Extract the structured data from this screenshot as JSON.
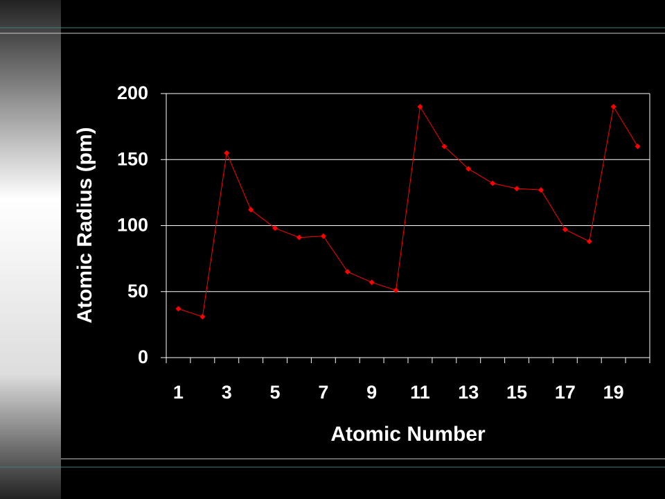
{
  "chart_data": {
    "type": "line",
    "categories": [
      "1",
      null,
      "3",
      null,
      "5",
      null,
      "7",
      null,
      "9",
      null,
      "11",
      null,
      "13",
      null,
      "15",
      null,
      "17",
      null,
      "19",
      null
    ],
    "values": [
      37,
      31,
      155,
      112,
      98,
      91,
      92,
      65,
      57,
      51,
      190,
      160,
      143,
      132,
      128,
      127,
      97,
      88,
      190,
      160
    ],
    "color": "#ff0000",
    "x_label": "Atomic Number",
    "y_label": "Atomic Radius (pm)",
    "ylim": [
      0,
      200
    ],
    "yticks": [
      0,
      50,
      100,
      150,
      200
    ],
    "grid": true
  }
}
